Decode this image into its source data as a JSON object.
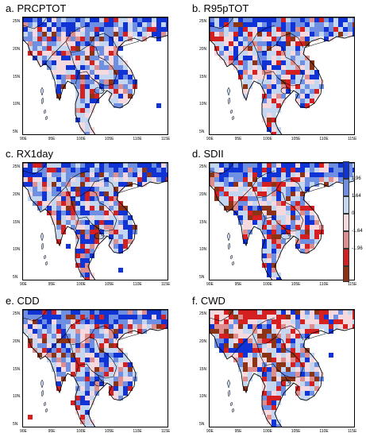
{
  "panels": [
    {
      "title": "a. PRCPTOT",
      "scheme": "a"
    },
    {
      "title": "b. R95pTOT",
      "scheme": "b"
    },
    {
      "title": "c. RX1day",
      "scheme": "c"
    },
    {
      "title": "d. SDII",
      "scheme": "d"
    },
    {
      "title": "e. CDD",
      "scheme": "e"
    },
    {
      "title": "f. CWD",
      "scheme": "f"
    }
  ],
  "axes": {
    "lat_ticks": [
      "25N",
      "20N",
      "15N",
      "10N",
      "5N"
    ],
    "lon_ticks": [
      "90E",
      "95E",
      "100E",
      "105E",
      "110E",
      "115E"
    ]
  },
  "legend": {
    "labels": [
      "1.96",
      "1.64",
      "0",
      "-1.64",
      "-1.96"
    ],
    "colors": [
      "#1033d6",
      "#6f8fe3",
      "#c4d6f0",
      "#f6d9df",
      "#de8e8e",
      "#d42020",
      "#8b3314"
    ]
  }
}
